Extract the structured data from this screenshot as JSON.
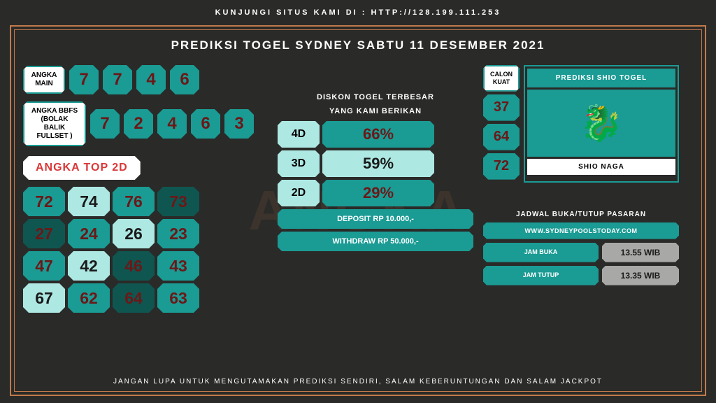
{
  "header": "KUNJUNGI SITUS KAMI DI : HTTP://128.199.111.253",
  "title": "PREDIKSI TOGEL SYDNEY SABTU 11 DESEMBER 2021",
  "angka_main": {
    "label": "ANGKA\nMAIN",
    "nums": [
      "7",
      "7",
      "4",
      "6"
    ]
  },
  "angka_bbfs": {
    "label": "ANGKA BBFS\n(BOLAK BALIK\nFULLSET )",
    "nums": [
      "7",
      "2",
      "4",
      "6",
      "3"
    ]
  },
  "top2d": {
    "label": "ANGKA TOP 2D",
    "cells": [
      {
        "v": "72",
        "c": "c-teal"
      },
      {
        "v": "74",
        "c": "c-light"
      },
      {
        "v": "76",
        "c": "c-teal"
      },
      {
        "v": "73",
        "c": "c-dark"
      },
      {
        "v": "27",
        "c": "c-dark"
      },
      {
        "v": "24",
        "c": "c-teal"
      },
      {
        "v": "26",
        "c": "c-light"
      },
      {
        "v": "23",
        "c": "c-teal"
      },
      {
        "v": "47",
        "c": "c-teal"
      },
      {
        "v": "42",
        "c": "c-light"
      },
      {
        "v": "46",
        "c": "c-dark"
      },
      {
        "v": "43",
        "c": "c-teal"
      },
      {
        "v": "67",
        "c": "c-light"
      },
      {
        "v": "62",
        "c": "c-teal"
      },
      {
        "v": "64",
        "c": "c-dark"
      },
      {
        "v": "63",
        "c": "c-teal"
      }
    ]
  },
  "diskon": {
    "title1": "DISKON TOGEL TERBESAR",
    "title2": "YANG KAMI BERIKAN",
    "rows": [
      {
        "label": "4D",
        "val": "66%",
        "cls": "v-teal"
      },
      {
        "label": "3D",
        "val": "59%",
        "cls": "v-light"
      },
      {
        "label": "2D",
        "val": "29%",
        "cls": "v-teal"
      }
    ],
    "deposit": "DEPOSIT RP 10.000,-",
    "withdraw": "WITHDRAW RP 50.000,-"
  },
  "calon": {
    "label": "CALON\nKUAT",
    "nums": [
      "37",
      "64",
      "72"
    ]
  },
  "shio": {
    "title": "PREDIKSI SHIO TOGEL",
    "icon": "🐉",
    "name": "SHIO NAGA"
  },
  "jadwal": {
    "title": "JADWAL BUKA/TUTUP PASARAN",
    "url": "WWW.SYDNEYPOOLSTODAY.COM",
    "buka_label": "JAM BUKA",
    "buka_val": "13.55 WIB",
    "tutup_label": "JAM TUTUP",
    "tutup_val": "13.35 WIB"
  },
  "footer": "JANGAN LUPA UNTUK MENGUTAMAKAN PREDIKSI SENDIRI, SALAM KEBERUNTUNGAN DAN SALAM JACKPOT",
  "watermark": "ANGKA"
}
